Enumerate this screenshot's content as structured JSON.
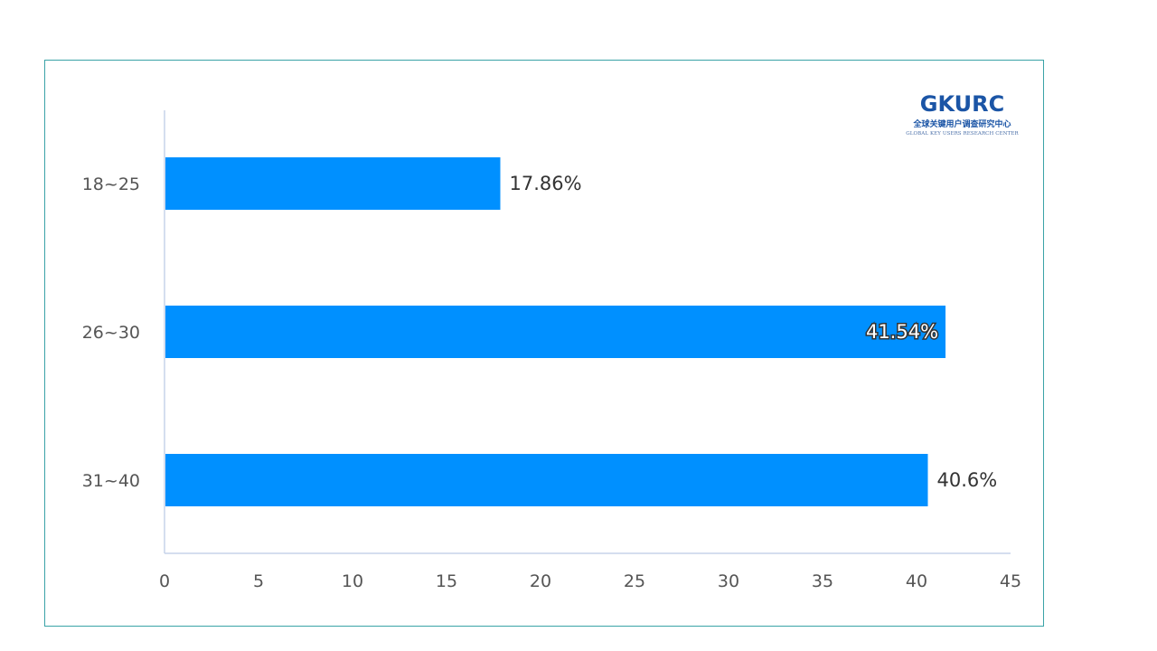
{
  "logo": {
    "name": "GKURC",
    "subtitle_cn": "全球关键用户调查研究中心",
    "subtitle_en": "GLOBAL KEY USERS RESEARCH CENTER"
  },
  "colors": {
    "bar": "#0090ff",
    "axis": "#c7d3ea",
    "frame": "#3aa3a7",
    "logo": "#1b55a6"
  },
  "chart_data": {
    "type": "bar",
    "orientation": "horizontal",
    "categories": [
      "18~25",
      "26~30",
      "31~40"
    ],
    "values": [
      17.86,
      41.54,
      40.6
    ],
    "value_labels": [
      "17.86%",
      "41.54%",
      "40.6%"
    ],
    "xticks": [
      "0",
      "5",
      "10",
      "15",
      "20",
      "25",
      "30",
      "35",
      "40",
      "45"
    ],
    "xlim": [
      0,
      45
    ],
    "grid": false
  }
}
